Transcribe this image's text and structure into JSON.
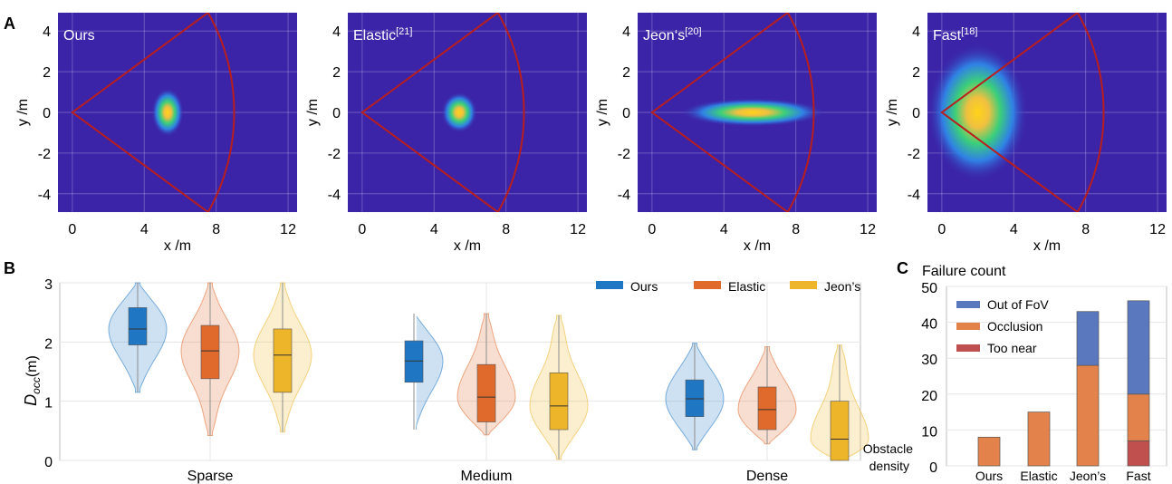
{
  "panels": {
    "A": "A",
    "B": "B",
    "C": "C"
  },
  "heatmaps": [
    {
      "title": "Ours",
      "ref": "",
      "blob": {
        "cx": 5.3,
        "cy": 0,
        "sx": 0.45,
        "sy": 0.6
      }
    },
    {
      "title": "Elastic",
      "ref": "[21]",
      "blob": {
        "cx": 5.4,
        "cy": 0,
        "sx": 0.5,
        "sy": 0.5
      }
    },
    {
      "title": "Jeon‘s",
      "ref": "[20]",
      "blob": {
        "cx": 5.6,
        "cy": 0,
        "sx": 2.0,
        "sy": 0.35
      }
    },
    {
      "title": "Fast",
      "ref": "[18]",
      "blob": {
        "cx": 2.0,
        "cy": 0,
        "sx": 1.4,
        "sy": 1.7
      }
    }
  ],
  "heat_axes": {
    "xlabel": "x /m",
    "ylabel": "y /m",
    "xticks": [
      "0",
      "4",
      "8",
      "12"
    ],
    "yticks": [
      "4",
      "2",
      "0",
      "-2",
      "-4"
    ],
    "xlim": [
      -0.8,
      12.5
    ],
    "ylim": [
      -4.9,
      4.9
    ],
    "fov_apex": [
      0,
      0
    ],
    "fov_radius": 9.0,
    "fov_half_angle_deg": 33
  },
  "colors": {
    "ours": "#1f77c4",
    "elastic": "#e06a2c",
    "jeons": "#edb52a",
    "fov": "#b81e1e",
    "heat_bg": "#3b24a8",
    "out_fov": "#5a78bd",
    "occlusion": "#e3834b",
    "too_near": "#c0504d"
  },
  "chart_data": [
    {
      "type": "violin",
      "ylabel_main": "D",
      "ylabel_sub": "occ",
      "ylabel_unit": "(m)",
      "xlabel": "Obstacle",
      "xlabel2": "density",
      "categories": [
        "Sparse",
        "Medium",
        "Dense"
      ],
      "ylim": [
        0,
        3
      ],
      "yticks": [
        "0",
        "1",
        "2",
        "3"
      ],
      "legend": [
        "Ours",
        "Elastic",
        "Jeon’s"
      ],
      "series": [
        {
          "name": "Ours",
          "groups": [
            {
              "min": 1.15,
              "q1": 1.95,
              "median": 2.22,
              "q3": 2.58,
              "max": 3.0
            },
            {
              "min": 0.52,
              "q1": 1.32,
              "median": 1.68,
              "q3": 2.02,
              "max": 2.48
            },
            {
              "min": 0.18,
              "q1": 0.74,
              "median": 1.04,
              "q3": 1.36,
              "max": 1.98
            }
          ]
        },
        {
          "name": "Elastic",
          "groups": [
            {
              "min": 0.42,
              "q1": 1.38,
              "median": 1.85,
              "q3": 2.28,
              "max": 3.0
            },
            {
              "min": 0.43,
              "q1": 0.65,
              "median": 1.07,
              "q3": 1.62,
              "max": 2.48
            },
            {
              "min": 0.28,
              "q1": 0.52,
              "median": 0.86,
              "q3": 1.24,
              "max": 1.92
            }
          ]
        },
        {
          "name": "Jeon’s",
          "groups": [
            {
              "min": 0.48,
              "q1": 1.15,
              "median": 1.78,
              "q3": 2.22,
              "max": 3.0
            },
            {
              "min": 0.02,
              "q1": 0.52,
              "median": 0.92,
              "q3": 1.48,
              "max": 2.45
            },
            {
              "min": 0.0,
              "q1": 0.0,
              "median": 0.36,
              "q3": 1.0,
              "max": 1.95
            }
          ]
        }
      ]
    },
    {
      "type": "bar",
      "title": "Failure count",
      "categories": [
        "Ours",
        "Elastic",
        "Jeon’s",
        "Fast"
      ],
      "ylim": [
        0,
        50
      ],
      "yticks": [
        "0",
        "10",
        "20",
        "30",
        "40",
        "50"
      ],
      "series": [
        {
          "name": "Too near",
          "values": [
            0,
            0,
            0,
            7
          ]
        },
        {
          "name": "Occlusion",
          "values": [
            8,
            15,
            28,
            13
          ]
        },
        {
          "name": "Out of FoV",
          "values": [
            0,
            0,
            15,
            26
          ]
        }
      ],
      "legend": [
        "Out of  FoV",
        "Occlusion",
        "Too near"
      ]
    }
  ]
}
